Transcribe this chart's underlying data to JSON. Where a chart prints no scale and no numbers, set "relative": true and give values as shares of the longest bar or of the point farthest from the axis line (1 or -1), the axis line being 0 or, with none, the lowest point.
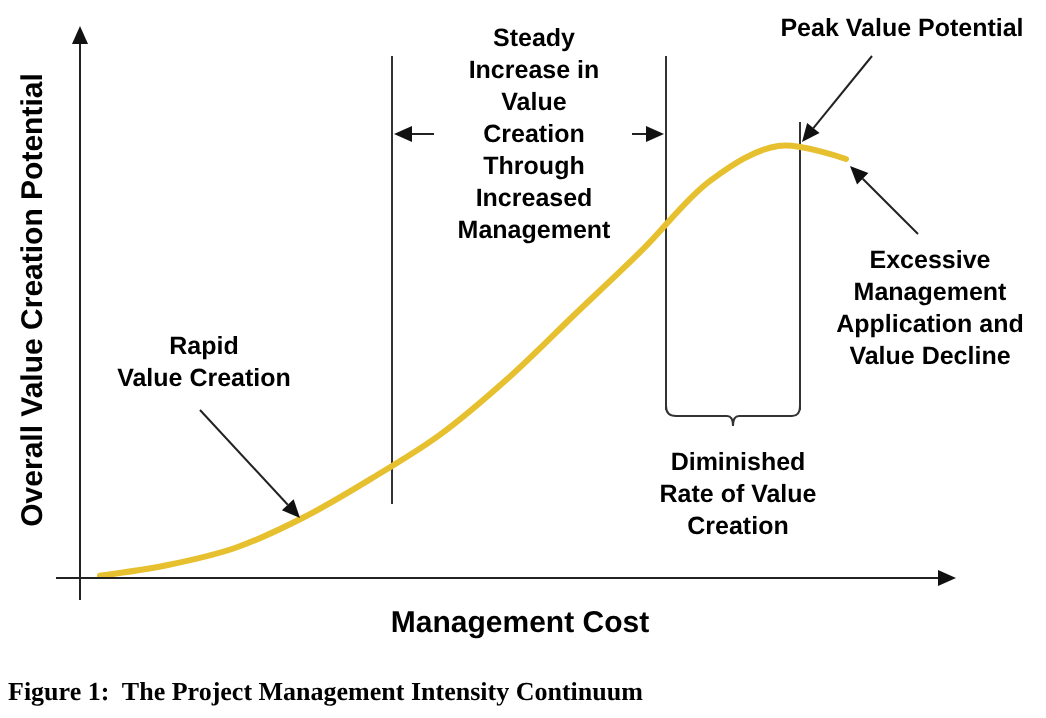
{
  "chart_data": {
    "type": "line",
    "relative": true,
    "xlabel": "Management Cost",
    "ylabel": "Overall Value Creation Potential",
    "categories": [
      null,
      null,
      null,
      null,
      null,
      null,
      null,
      null,
      null,
      null,
      null,
      null
    ],
    "series": [
      {
        "color": "#e6c02e",
        "values": [
          0.005,
          0.03,
          0.07,
          0.14,
          0.23,
          0.33,
          0.46,
          0.61,
          0.76,
          0.92,
          1,
          0.97
        ]
      }
    ],
    "annotations": [
      "Steady\nIncrease in\nValue\nCreation\nThrough\nIncreased\nManagement",
      "Peak Value Potential",
      "Rapid\nValue Creation",
      "Excessive\nManagement\nApplication and\nValue Decline",
      "Diminished\nRate of Value\nCreation",
      "Figure 1:  The Project Management Intensity Continuum"
    ],
    "grid": false,
    "marker": "none",
    "line_style": "solid"
  }
}
